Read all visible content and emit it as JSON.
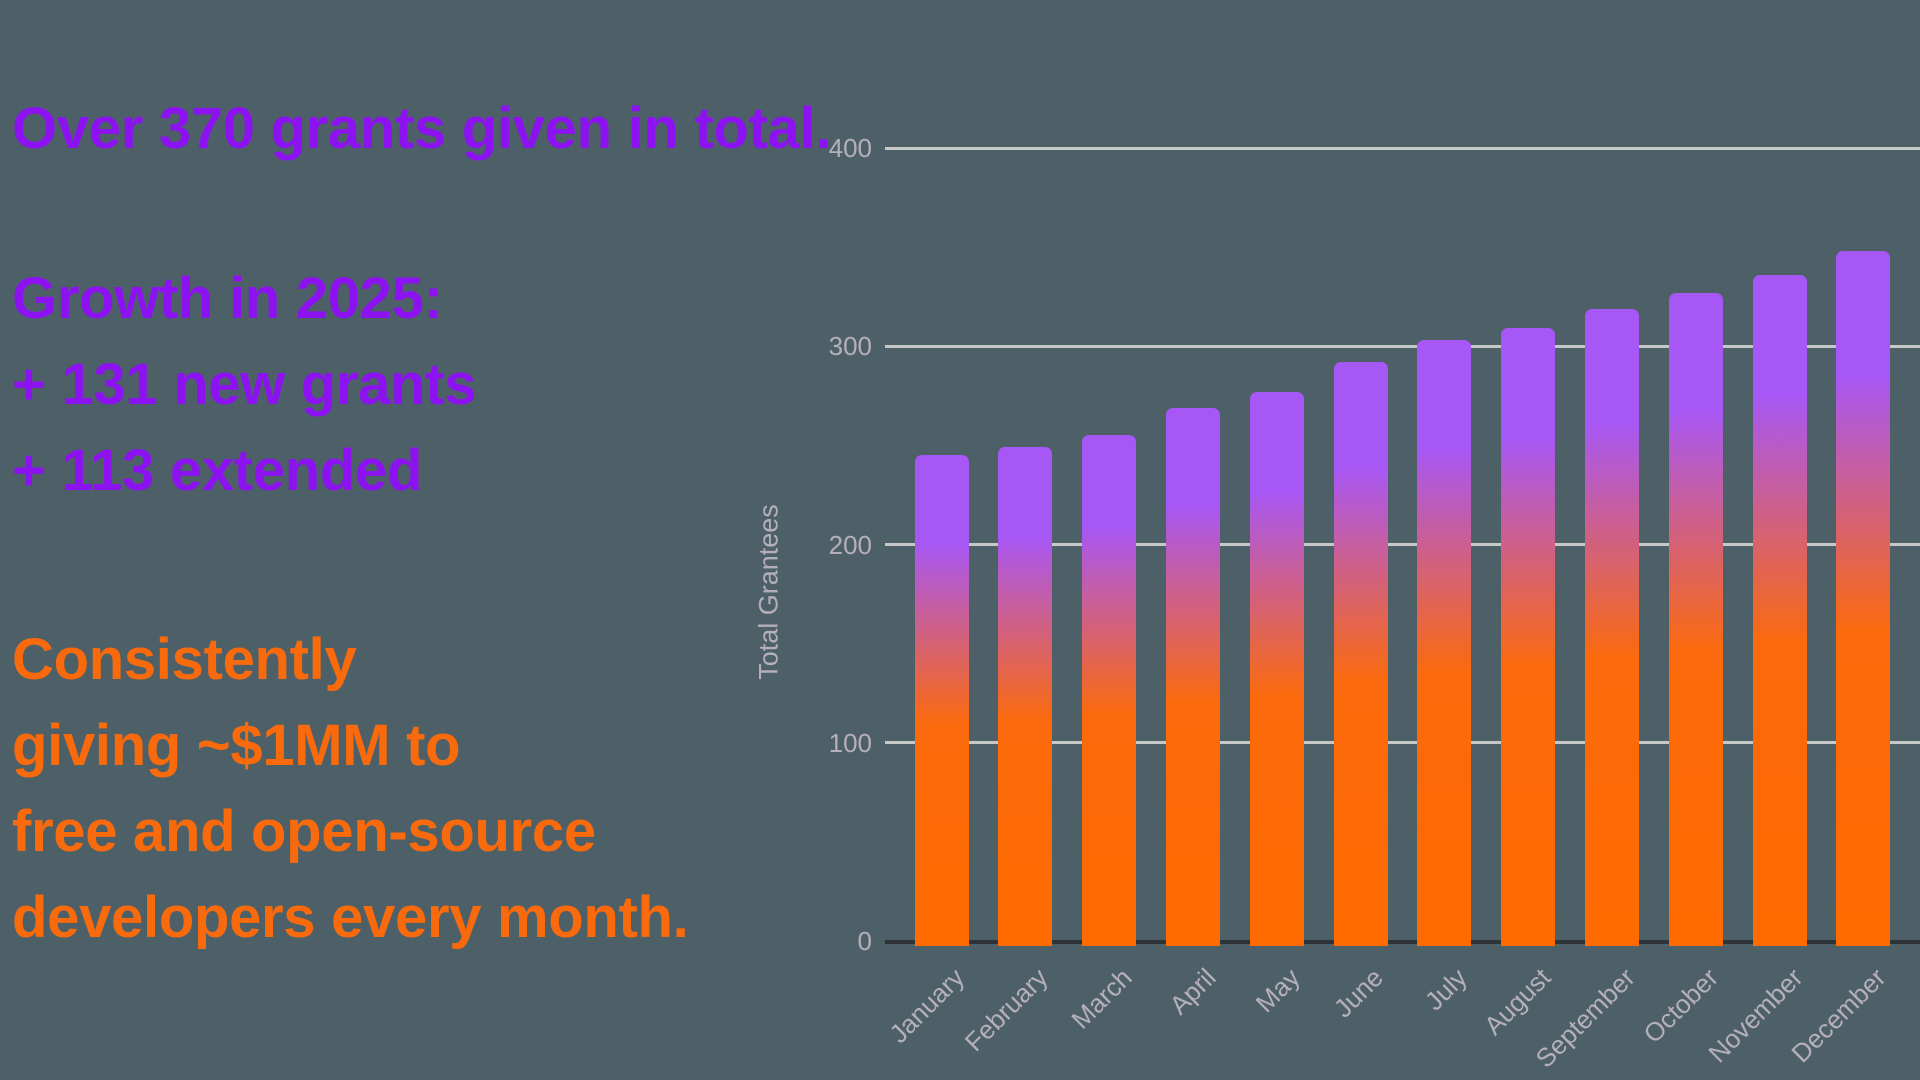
{
  "text_panel": {
    "title": "Over 370 grants given in total.",
    "growth": {
      "heading": "Growth in 2025:",
      "lines": [
        "+ 131 new grants",
        "+ 113 extended"
      ]
    },
    "impact_lines": [
      "Consistently",
      "giving ~$1MM to",
      "free and open-source",
      "developers every month."
    ]
  },
  "colors": {
    "background": "#4E6067",
    "text_purple": "#8D12F2",
    "text_orange": "#F96A0C",
    "gridline": "#C7C9C9",
    "axis_line": "#2E3338",
    "tick_label": "#B5AFBA"
  },
  "chart_data": {
    "type": "bar",
    "title": "",
    "categories": [
      "January",
      "February",
      "March",
      "April",
      "May",
      "June",
      "July",
      "August",
      "September",
      "October",
      "November",
      "December"
    ],
    "values": [
      245,
      249,
      255,
      269,
      277,
      292,
      303,
      309,
      319,
      327,
      336,
      348
    ],
    "xlabel": "",
    "ylabel": "Total Grantees",
    "ylim": [
      0,
      400
    ],
    "yticks": [
      0,
      100,
      200,
      300,
      400
    ],
    "grid": "horizontal",
    "legend": "none",
    "bar_gradient": [
      "#A757F5",
      "#FB6A0C",
      "#FF6B00"
    ],
    "bar_gradient_stops_pct": [
      18,
      55,
      100
    ]
  }
}
